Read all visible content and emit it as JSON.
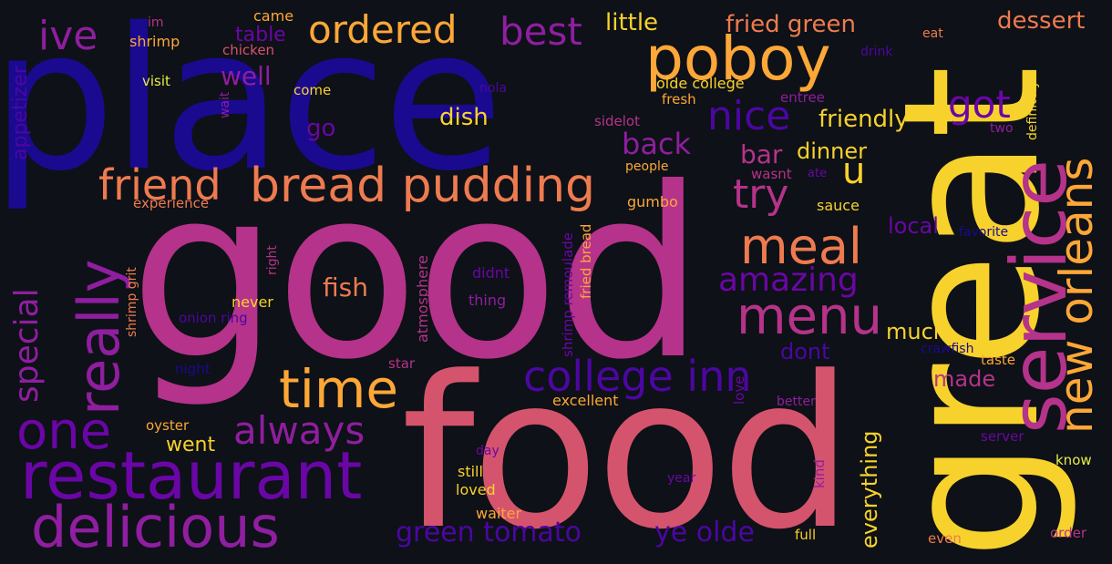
{
  "palette": {
    "background": "#0e1117",
    "c1": "#1a0a8f",
    "c2": "#4c06a2",
    "c3": "#6a06a6",
    "c4": "#8f1ea0",
    "c5": "#b5338a",
    "c6": "#d5546d",
    "c7": "#ee7b4f",
    "c8": "#fca737",
    "c9": "#f8d22c",
    "c10": "#e6ec4a"
  },
  "words": [
    {
      "text": "good",
      "color": "#b5338a"
    },
    {
      "text": "place",
      "color": "#1a0a8f"
    },
    {
      "text": "food",
      "color": "#d5546d"
    },
    {
      "text": "great",
      "color": "#f8d22c"
    },
    {
      "text": "service",
      "color": "#b5338a"
    },
    {
      "text": "restaurant",
      "color": "#6a06a6"
    },
    {
      "text": "delicious",
      "color": "#8f1ea0"
    },
    {
      "text": "poboy",
      "color": "#fca737"
    },
    {
      "text": "bread pudding",
      "color": "#ee7b4f"
    },
    {
      "text": "new orleans",
      "color": "#fca737"
    },
    {
      "text": "meal",
      "color": "#ee7b4f"
    },
    {
      "text": "menu",
      "color": "#b5338a"
    },
    {
      "text": "one",
      "color": "#6a06a6"
    },
    {
      "text": "time",
      "color": "#fca737"
    },
    {
      "text": "college inn",
      "color": "#4c06a2"
    },
    {
      "text": "ordered",
      "color": "#fca737"
    },
    {
      "text": "best",
      "color": "#8f1ea0"
    },
    {
      "text": "really",
      "color": "#8f1ea0"
    },
    {
      "text": "nice",
      "color": "#4c06a2"
    },
    {
      "text": "friend",
      "color": "#ee7b4f"
    },
    {
      "text": "try",
      "color": "#b5338a"
    },
    {
      "text": "ive",
      "color": "#8f1ea0"
    },
    {
      "text": "always",
      "color": "#8f1ea0"
    },
    {
      "text": "special",
      "color": "#8f1ea0"
    },
    {
      "text": "got",
      "color": "#6a06a6"
    },
    {
      "text": "amazing",
      "color": "#6a06a6"
    },
    {
      "text": "u",
      "color": "#f8d22c"
    },
    {
      "text": "green tomato",
      "color": "#4c06a2"
    },
    {
      "text": "ye olde",
      "color": "#4c06a2"
    },
    {
      "text": "back",
      "color": "#8f1ea0"
    },
    {
      "text": "fried green",
      "color": "#ee7b4f"
    },
    {
      "text": "little",
      "color": "#f8d22c"
    },
    {
      "text": "dessert",
      "color": "#ee7b4f"
    },
    {
      "text": "friendly",
      "color": "#f8d22c"
    },
    {
      "text": "well",
      "color": "#8f1ea0"
    },
    {
      "text": "dish",
      "color": "#f8d22c"
    },
    {
      "text": "fish",
      "color": "#ee7b4f"
    },
    {
      "text": "bar",
      "color": "#b5338a"
    },
    {
      "text": "dinner",
      "color": "#f8d22c"
    },
    {
      "text": "local",
      "color": "#6a06a6"
    },
    {
      "text": "much",
      "color": "#f8d22c"
    },
    {
      "text": "dont",
      "color": "#4c06a2"
    },
    {
      "text": "made",
      "color": "#b5338a"
    },
    {
      "text": "everything",
      "color": "#f8d22c"
    },
    {
      "text": "went",
      "color": "#f8d22c"
    },
    {
      "text": "go",
      "color": "#6a06a6"
    },
    {
      "text": "table",
      "color": "#6a06a6"
    },
    {
      "text": "appetizer",
      "color": "#4c06a2"
    },
    {
      "text": "shrimp",
      "color": "#fca737"
    },
    {
      "text": "chicken",
      "color": "#d5546d"
    },
    {
      "text": "came",
      "color": "#fca737"
    },
    {
      "text": "im",
      "color": "#b5338a"
    },
    {
      "text": "visit",
      "color": "#e6ec4a"
    },
    {
      "text": "wait",
      "color": "#8f1ea0"
    },
    {
      "text": "come",
      "color": "#f8d22c"
    },
    {
      "text": "nola",
      "color": "#4c06a2"
    },
    {
      "text": "olde college",
      "color": "#f8d22c"
    },
    {
      "text": "fresh",
      "color": "#fca737"
    },
    {
      "text": "entree",
      "color": "#8f1ea0"
    },
    {
      "text": "drink",
      "color": "#4c06a2"
    },
    {
      "text": "eat",
      "color": "#ee7b4f"
    },
    {
      "text": "definitely",
      "color": "#f8d22c"
    },
    {
      "text": "two",
      "color": "#8f1ea0"
    },
    {
      "text": "sidelot",
      "color": "#b5338a"
    },
    {
      "text": "people",
      "color": "#fca737"
    },
    {
      "text": "wasnt",
      "color": "#b5338a"
    },
    {
      "text": "ate",
      "color": "#6a06a6"
    },
    {
      "text": "gumbo",
      "color": "#fca737"
    },
    {
      "text": "sauce",
      "color": "#f8d22c"
    },
    {
      "text": "favorite",
      "color": "#1a0a8f"
    },
    {
      "text": "experience",
      "color": "#ee7b4f"
    },
    {
      "text": "shrimp grit",
      "color": "#ee7b4f"
    },
    {
      "text": "right",
      "color": "#b5338a"
    },
    {
      "text": "never",
      "color": "#f8d22c"
    },
    {
      "text": "onion ring",
      "color": "#4c06a2"
    },
    {
      "text": "atmosphere",
      "color": "#b5338a"
    },
    {
      "text": "didnt",
      "color": "#6a06a6"
    },
    {
      "text": "thing",
      "color": "#8f1ea0"
    },
    {
      "text": "shrimp remoulade",
      "color": "#6a06a6"
    },
    {
      "text": "fried bread",
      "color": "#fca737"
    },
    {
      "text": "crawfish",
      "color": "#1a0a8f"
    },
    {
      "text": "taste",
      "color": "#fca737"
    },
    {
      "text": "night",
      "color": "#1a0a8f"
    },
    {
      "text": "star",
      "color": "#b5338a"
    },
    {
      "text": "excellent",
      "color": "#fca737"
    },
    {
      "text": "love",
      "color": "#6a06a6"
    },
    {
      "text": "better",
      "color": "#8f1ea0"
    },
    {
      "text": "oyster",
      "color": "#fca737"
    },
    {
      "text": "day",
      "color": "#6a06a6"
    },
    {
      "text": "still",
      "color": "#f8d22c"
    },
    {
      "text": "loved",
      "color": "#f8d22c"
    },
    {
      "text": "waiter",
      "color": "#fca737"
    },
    {
      "text": "year",
      "color": "#6a06a6"
    },
    {
      "text": "kind",
      "color": "#8f1ea0"
    },
    {
      "text": "server",
      "color": "#6a06a6"
    },
    {
      "text": "know",
      "color": "#e6ec4a"
    },
    {
      "text": "full",
      "color": "#f8d22c"
    },
    {
      "text": "even",
      "color": "#ee7b4f"
    },
    {
      "text": "order",
      "color": "#b5338a"
    }
  ]
}
